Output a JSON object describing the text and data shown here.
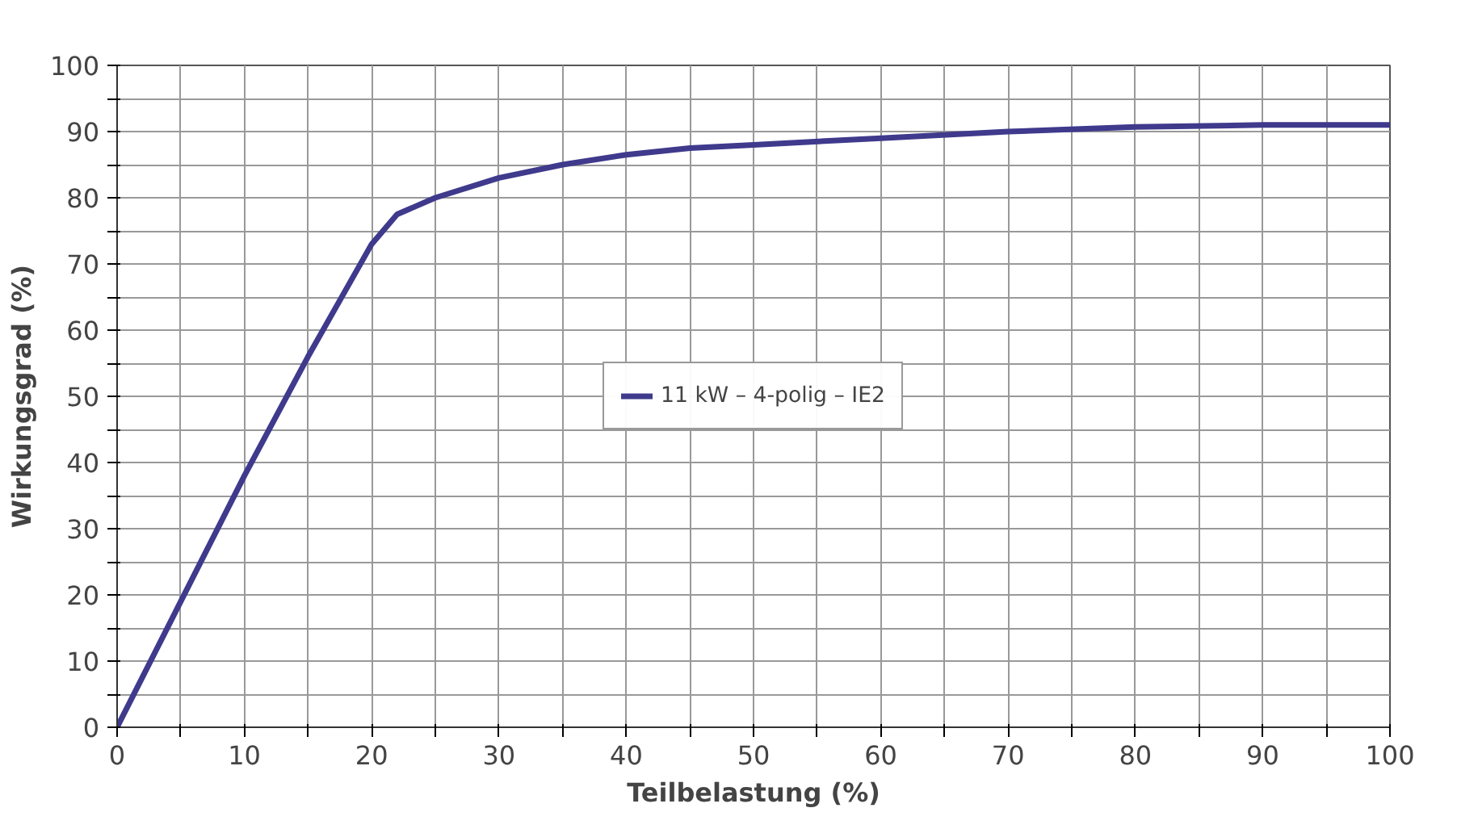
{
  "chart_data": {
    "type": "line",
    "xlabel": "Teilbelastung (%)",
    "ylabel": "Wirkungsgrad (%)",
    "x": [
      0,
      5,
      10,
      15,
      20,
      22,
      25,
      30,
      35,
      40,
      45,
      50,
      60,
      70,
      80,
      90,
      100
    ],
    "series": [
      {
        "name": "11 kW – 4-polig – IE2",
        "color": "#3f3a8c",
        "values": [
          0,
          19,
          38,
          56,
          73,
          77.5,
          80,
          83,
          85,
          86.5,
          87.5,
          88,
          89,
          90,
          90.7,
          91,
          91
        ]
      }
    ],
    "xlim": [
      0,
      100
    ],
    "ylim": [
      0,
      100
    ],
    "xticks": [
      0,
      {
        "value": 5,
        "label": null
      },
      10,
      {
        "value": 15,
        "label": null
      },
      20,
      {
        "value": 25,
        "label": null
      },
      30,
      {
        "value": 35,
        "label": null
      },
      40,
      {
        "value": 45,
        "label": null
      },
      50,
      {
        "value": 55,
        "label": null
      },
      60,
      {
        "value": 65,
        "label": null
      },
      70,
      {
        "value": 75,
        "label": null
      },
      80,
      {
        "value": 85,
        "label": null
      },
      90,
      {
        "value": 95,
        "label": null
      },
      100
    ],
    "yticks": [
      0,
      {
        "value": 5,
        "label": null
      },
      10,
      {
        "value": 15,
        "label": null
      },
      20,
      {
        "value": 25,
        "label": null
      },
      30,
      {
        "value": 35,
        "label": null
      },
      40,
      {
        "value": 45,
        "label": null
      },
      50,
      {
        "value": 55,
        "label": null
      },
      60,
      {
        "value": 65,
        "label": null
      },
      70,
      {
        "value": 75,
        "label": null
      },
      80,
      {
        "value": 85,
        "label": null
      },
      90,
      {
        "value": 95,
        "label": null
      },
      100
    ],
    "grid": true,
    "legend": "center",
    "marker": "none",
    "line_style": "solid"
  }
}
